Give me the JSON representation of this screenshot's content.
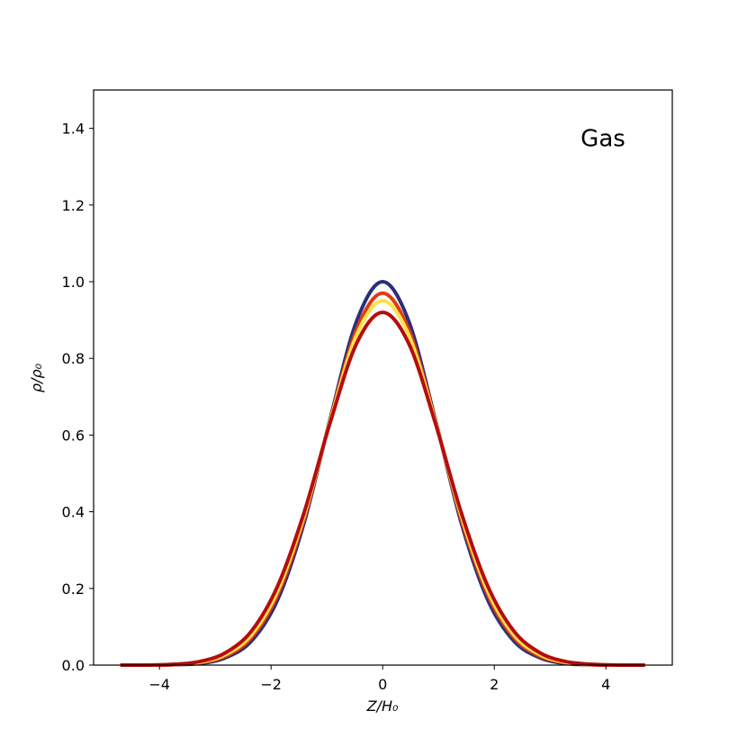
{
  "chart_data": {
    "type": "line",
    "annotation": "Gas",
    "xlabel": "Z/H₀",
    "ylabel": "ρ/ρ₀",
    "x": [
      -4.7,
      -4.23,
      -3.76,
      -3.29,
      -2.82,
      -2.35,
      -1.88,
      -1.41,
      -0.94,
      -0.47,
      0,
      0.47,
      0.94,
      1.41,
      1.88,
      2.35,
      2.82,
      3.29,
      3.76,
      4.23,
      4.7
    ],
    "series": [
      {
        "color": "#2b2f7a",
        "values": [
          0.0,
          0.0,
          0.001,
          0.004,
          0.019,
          0.063,
          0.171,
          0.37,
          0.643,
          0.896,
          1.0,
          0.896,
          0.643,
          0.37,
          0.171,
          0.063,
          0.019,
          0.004,
          0.001,
          0.0,
          0.0
        ]
      },
      {
        "color": "#e23a10",
        "values": [
          0.0,
          0.0,
          0.001,
          0.006,
          0.023,
          0.072,
          0.184,
          0.38,
          0.64,
          0.874,
          0.97,
          0.874,
          0.64,
          0.38,
          0.184,
          0.072,
          0.023,
          0.006,
          0.001,
          0.0,
          0.0
        ]
      },
      {
        "color": "#ffe24a",
        "values": [
          0.0,
          0.0,
          0.002,
          0.007,
          0.027,
          0.079,
          0.194,
          0.388,
          0.637,
          0.86,
          0.95,
          0.86,
          0.637,
          0.388,
          0.194,
          0.079,
          0.027,
          0.007,
          0.002,
          0.0,
          0.0
        ]
      },
      {
        "color": "#b50d0d",
        "values": [
          0.0,
          0.0,
          0.002,
          0.009,
          0.032,
          0.089,
          0.207,
          0.397,
          0.633,
          0.838,
          0.92,
          0.838,
          0.633,
          0.397,
          0.207,
          0.089,
          0.032,
          0.009,
          0.002,
          0.0,
          0.0
        ]
      }
    ],
    "xlim": [
      -5.18,
      5.19
    ],
    "xticks": [
      {
        "value": -4,
        "label": "−4"
      },
      {
        "value": -2,
        "label": "−2"
      },
      0,
      2,
      4
    ],
    "ylim": [
      0,
      1.5
    ],
    "yticks": [
      {
        "value": 0,
        "label": "0.0"
      },
      0.2,
      0.4,
      0.6,
      0.8,
      {
        "value": 1,
        "label": "1.0"
      },
      1.2,
      1.4
    ],
    "grid": false
  }
}
